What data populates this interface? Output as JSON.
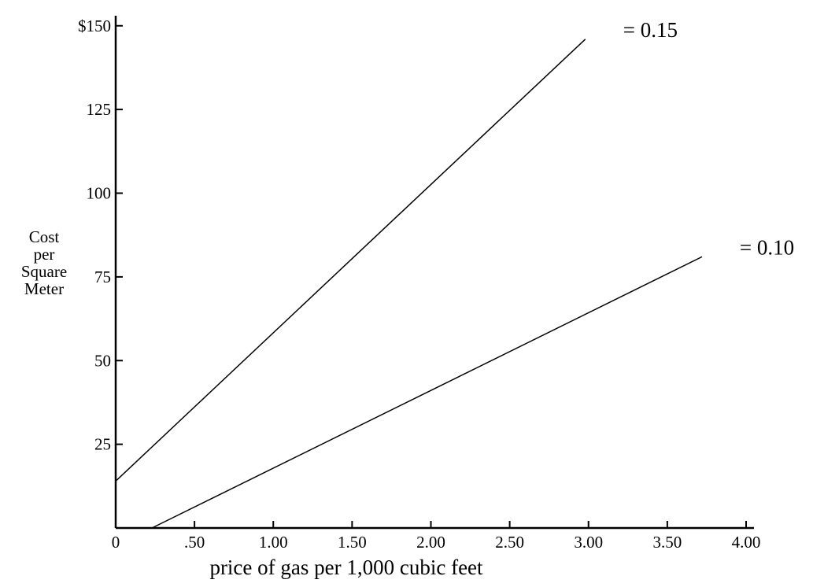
{
  "chart_data": {
    "type": "line",
    "title": "",
    "xlabel": "price of gas per 1,000 cubic feet",
    "ylabel_lines": [
      "Cost",
      "per",
      "Square",
      "Meter"
    ],
    "xlim": [
      0,
      4.05
    ],
    "ylim": [
      0,
      153
    ],
    "x_ticks": [
      {
        "value": 0,
        "label": "0"
      },
      {
        "value": 0.5,
        "label": ".50"
      },
      {
        "value": 1.0,
        "label": "1.00"
      },
      {
        "value": 1.5,
        "label": "1.50"
      },
      {
        "value": 2.0,
        "label": "2.00"
      },
      {
        "value": 2.5,
        "label": "2.50"
      },
      {
        "value": 3.0,
        "label": "3.00"
      },
      {
        "value": 3.5,
        "label": "3.50"
      },
      {
        "value": 4.0,
        "label": "4.00"
      }
    ],
    "y_ticks": [
      {
        "value": 25,
        "label": "25"
      },
      {
        "value": 50,
        "label": "50"
      },
      {
        "value": 75,
        "label": "75"
      },
      {
        "value": 100,
        "label": "100"
      },
      {
        "value": 125,
        "label": "125"
      },
      {
        "value": 150,
        "label": "$150"
      }
    ],
    "grid": false,
    "legend": "none",
    "series": [
      {
        "label": "= 0.15",
        "x": [
          0,
          2.98
        ],
        "y": [
          14,
          146
        ]
      },
      {
        "label": "= 0.10",
        "x": [
          0.23,
          3.72
        ],
        "y": [
          0,
          81
        ]
      }
    ],
    "line_color": "#000000"
  }
}
